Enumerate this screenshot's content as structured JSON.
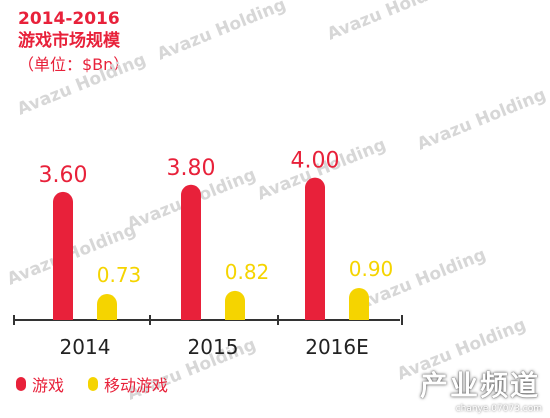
{
  "title": {
    "line1": "2014-2016",
    "line2": "游戏市场规模",
    "line3": "（单位：$Bn）"
  },
  "watermark": {
    "text": "Avazu Holding"
  },
  "corner": {
    "title": "产业频道",
    "url": "chanye.07073.com"
  },
  "colors": {
    "series1": "#e8213a",
    "series2": "#f5d400",
    "axis": "#333333"
  },
  "chart_data": {
    "type": "bar",
    "categories": [
      "2014",
      "2015",
      "2016E"
    ],
    "series": [
      {
        "name": "游戏",
        "values": [
          3.6,
          3.8,
          4.0
        ]
      },
      {
        "name": "移动游戏",
        "values": [
          0.73,
          0.82,
          0.9
        ]
      }
    ],
    "value_labels": [
      [
        "3.60",
        "3.80",
        "4.00"
      ],
      [
        "0.73",
        "0.82",
        "0.90"
      ]
    ],
    "ylim": [
      0,
      4.3
    ],
    "grid": false,
    "legend_position": "bottom-left"
  }
}
